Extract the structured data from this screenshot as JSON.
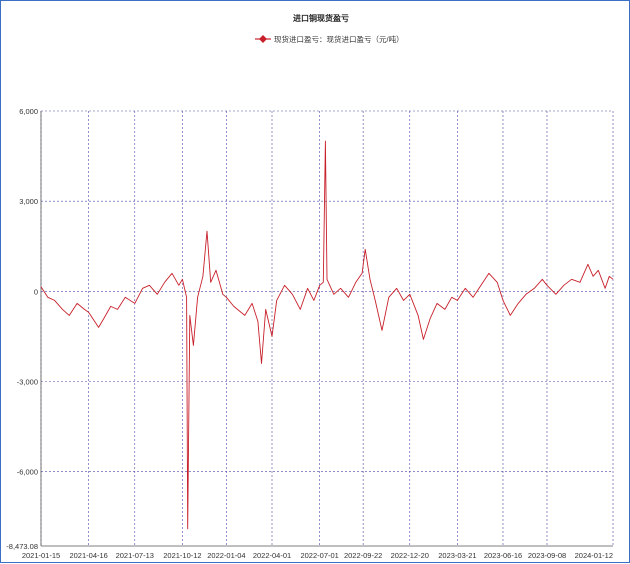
{
  "chart_data": {
    "type": "line",
    "title": "进口铜现货盈亏",
    "legend_placement": "top-center",
    "grid": true,
    "x_ticks": [
      "2021-01-15",
      "2021-04-16",
      "2021-07-13",
      "2021-10-12",
      "2022-01-04",
      "2022-04-01",
      "2022-07-01",
      "2022-09-22",
      "2022-12-20",
      "2023-03-21",
      "2023-06-16",
      "2023-09-08",
      "2024-01-12"
    ],
    "y_ticks": [
      6000,
      3000,
      0,
      -3000,
      -6000
    ],
    "y_tick_labels": [
      "6,000",
      "3,000",
      "0",
      "-3,000",
      "-6,000"
    ],
    "y_min_label": "-8,473.08",
    "ylim": [
      -8473.08,
      6000
    ],
    "series": [
      {
        "name": "现货进口盈亏：现货进口盈亏（元/吨）",
        "color": "#c8202a",
        "points": [
          [
            "2021-01-15",
            150
          ],
          [
            "2021-01-28",
            -200
          ],
          [
            "2021-02-10",
            -300
          ],
          [
            "2021-02-25",
            -600
          ],
          [
            "2021-03-10",
            -800
          ],
          [
            "2021-03-25",
            -400
          ],
          [
            "2021-04-08",
            -600
          ],
          [
            "2021-04-16",
            -700
          ],
          [
            "2021-05-05",
            -1200
          ],
          [
            "2021-05-15",
            -900
          ],
          [
            "2021-05-28",
            -500
          ],
          [
            "2021-06-10",
            -600
          ],
          [
            "2021-06-25",
            -200
          ],
          [
            "2021-07-13",
            -400
          ],
          [
            "2021-07-28",
            100
          ],
          [
            "2021-08-10",
            200
          ],
          [
            "2021-08-25",
            -100
          ],
          [
            "2021-09-08",
            300
          ],
          [
            "2021-09-22",
            600
          ],
          [
            "2021-10-05",
            200
          ],
          [
            "2021-10-12",
            400
          ],
          [
            "2021-10-20",
            -200
          ],
          [
            "2021-10-22",
            -7900
          ],
          [
            "2021-10-26",
            -800
          ],
          [
            "2021-11-02",
            -1800
          ],
          [
            "2021-11-10",
            -200
          ],
          [
            "2021-11-20",
            500
          ],
          [
            "2021-11-28",
            2000
          ],
          [
            "2021-12-05",
            300
          ],
          [
            "2021-12-15",
            700
          ],
          [
            "2021-12-28",
            -100
          ],
          [
            "2022-01-04",
            -200
          ],
          [
            "2022-01-18",
            -500
          ],
          [
            "2022-02-08",
            -800
          ],
          [
            "2022-02-22",
            -400
          ],
          [
            "2022-03-05",
            -1000
          ],
          [
            "2022-03-12",
            -2400
          ],
          [
            "2022-03-20",
            -600
          ],
          [
            "2022-04-01",
            -1500
          ],
          [
            "2022-04-10",
            -300
          ],
          [
            "2022-04-25",
            200
          ],
          [
            "2022-05-10",
            -100
          ],
          [
            "2022-05-25",
            -600
          ],
          [
            "2022-06-08",
            100
          ],
          [
            "2022-06-20",
            -300
          ],
          [
            "2022-07-01",
            200
          ],
          [
            "2022-07-08",
            300
          ],
          [
            "2022-07-12",
            5000
          ],
          [
            "2022-07-15",
            400
          ],
          [
            "2022-07-28",
            -100
          ],
          [
            "2022-08-10",
            100
          ],
          [
            "2022-08-25",
            -200
          ],
          [
            "2022-09-08",
            300
          ],
          [
            "2022-09-20",
            600
          ],
          [
            "2022-09-26",
            1400
          ],
          [
            "2022-10-05",
            400
          ],
          [
            "2022-10-15",
            -300
          ],
          [
            "2022-10-28",
            -1300
          ],
          [
            "2022-11-10",
            -200
          ],
          [
            "2022-11-25",
            100
          ],
          [
            "2022-12-08",
            -300
          ],
          [
            "2022-12-20",
            -100
          ],
          [
            "2023-01-05",
            -800
          ],
          [
            "2023-01-15",
            -1600
          ],
          [
            "2023-01-28",
            -900
          ],
          [
            "2023-02-10",
            -400
          ],
          [
            "2023-02-25",
            -600
          ],
          [
            "2023-03-10",
            -200
          ],
          [
            "2023-03-21",
            -300
          ],
          [
            "2023-04-05",
            100
          ],
          [
            "2023-04-20",
            -200
          ],
          [
            "2023-05-05",
            200
          ],
          [
            "2023-05-20",
            600
          ],
          [
            "2023-06-05",
            300
          ],
          [
            "2023-06-16",
            -300
          ],
          [
            "2023-06-30",
            -800
          ],
          [
            "2023-07-15",
            -400
          ],
          [
            "2023-07-30",
            -100
          ],
          [
            "2023-08-15",
            100
          ],
          [
            "2023-08-30",
            400
          ],
          [
            "2023-09-08",
            200
          ],
          [
            "2023-09-25",
            -100
          ],
          [
            "2023-10-10",
            200
          ],
          [
            "2023-10-25",
            400
          ],
          [
            "2023-11-10",
            300
          ],
          [
            "2023-11-25",
            900
          ],
          [
            "2023-12-05",
            500
          ],
          [
            "2023-12-15",
            700
          ],
          [
            "2023-12-28",
            100
          ],
          [
            "2024-01-05",
            500
          ],
          [
            "2024-01-12",
            400
          ]
        ]
      }
    ]
  }
}
